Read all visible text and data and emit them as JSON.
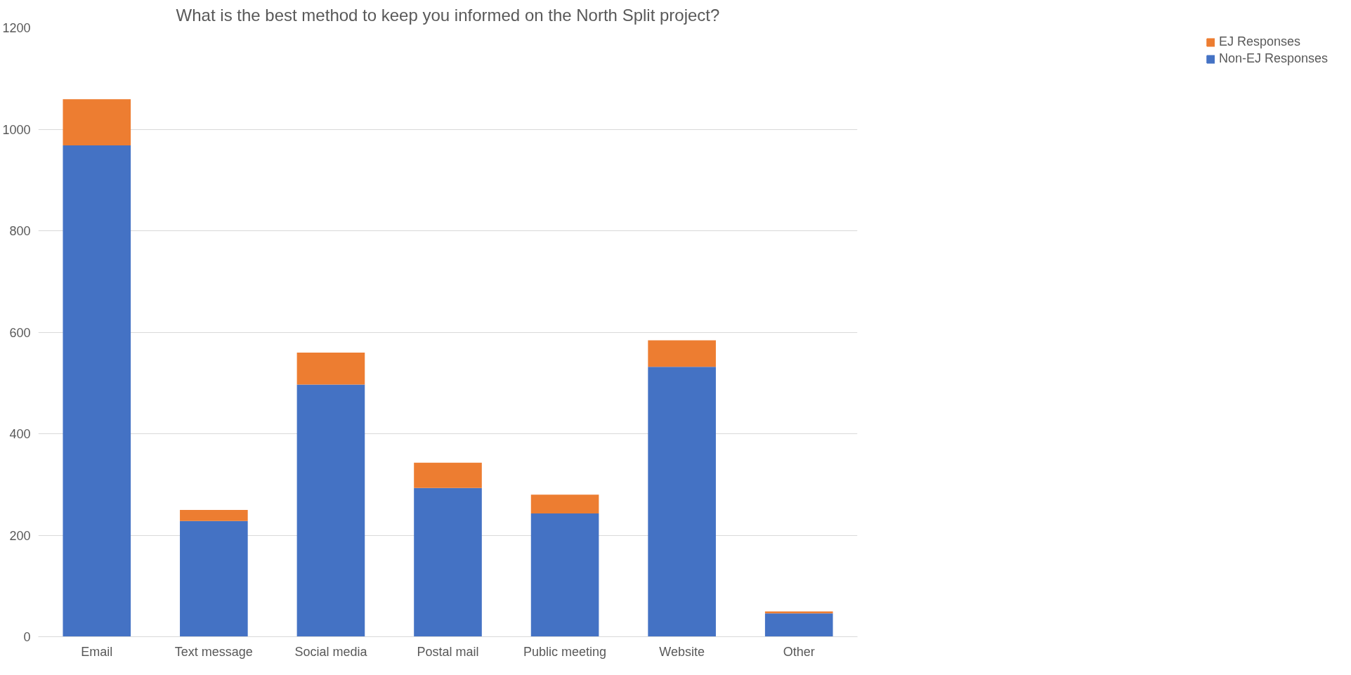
{
  "chart_data": {
    "type": "bar",
    "title": "What is the best method to keep you informed on the North Split project?",
    "categories": [
      "Email",
      "Text message",
      "Social media",
      "Postal mail",
      "Public meeting",
      "Website",
      "Other"
    ],
    "stacked": true,
    "series": [
      {
        "name": "Non-EJ Responses",
        "color": "#4472c4",
        "values": [
          968,
          228,
          497,
          293,
          243,
          532,
          46
        ]
      },
      {
        "name": "EJ Responses",
        "color": "#ed7d31",
        "values": [
          91,
          22,
          63,
          50,
          37,
          52,
          4
        ]
      }
    ],
    "ylim": [
      0,
      1200
    ],
    "yticks": [
      0,
      200,
      400,
      600,
      800,
      1000,
      1200
    ],
    "grid": "y",
    "legend": "right"
  }
}
